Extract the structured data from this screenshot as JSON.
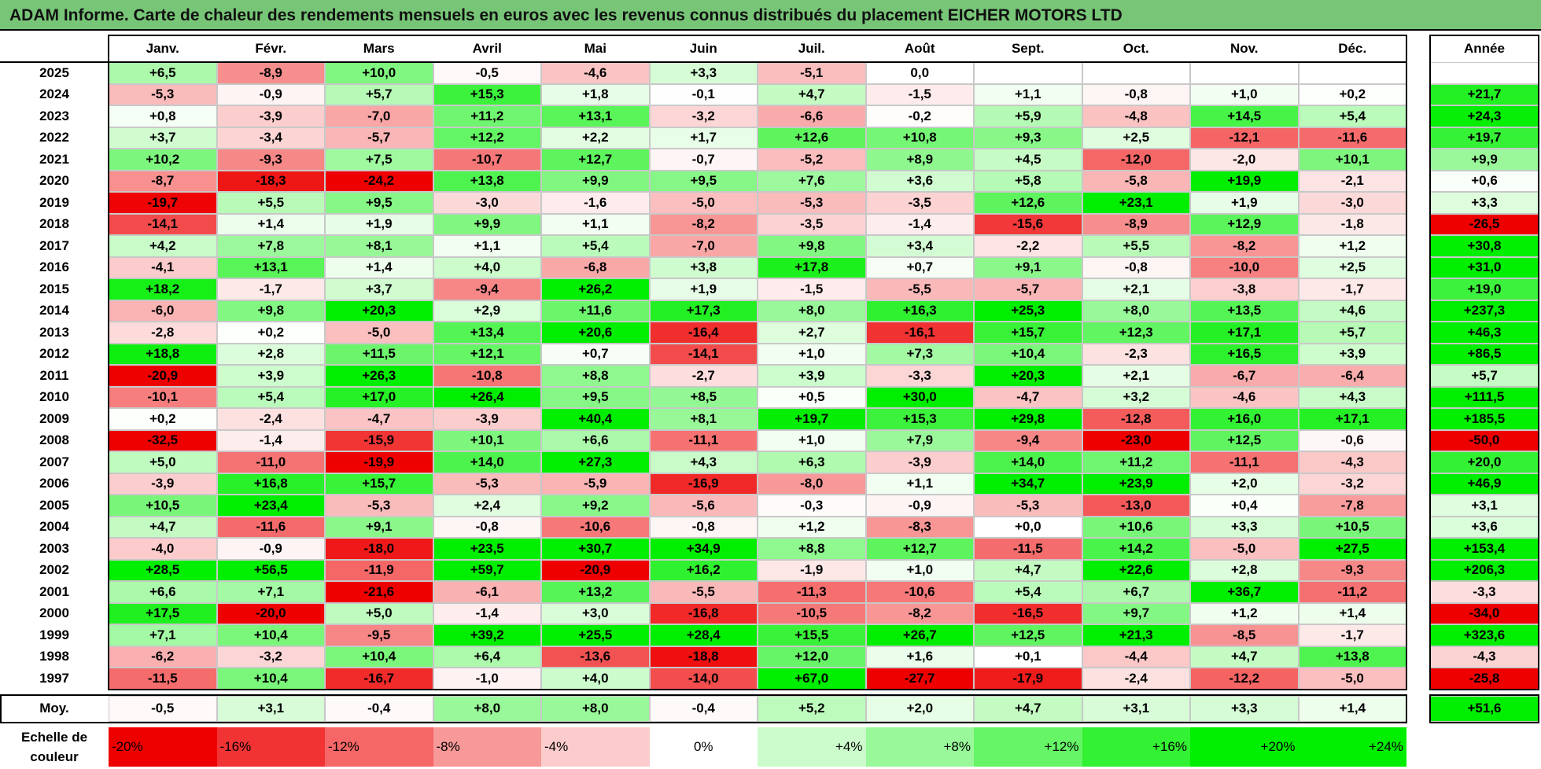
{
  "title": "ADAM Informe. Carte de chaleur des rendements mensuels en euros avec les revenus connus distribués du placement EICHER MOTORS LTD",
  "colors": {
    "title_bg": "#77c677",
    "positive": "#00ee00",
    "negative": "#ee0000",
    "neutral": "#ffffff"
  },
  "chart_data": {
    "type": "heatmap",
    "title": "ADAM Informe. Carte de chaleur des rendements mensuels en euros avec les revenus connus distribués du placement EICHER MOTORS LTD",
    "columns": [
      "Janv.",
      "Févr.",
      "Mars",
      "Avril",
      "Mai",
      "Juin",
      "Juil.",
      "Août",
      "Sept.",
      "Oct.",
      "Nov.",
      "Déc."
    ],
    "year_header": "Année",
    "rows": [
      {
        "year": "2025",
        "months": [
          "+6,5",
          "-8,9",
          "+10,0",
          "-0,5",
          "-4,6",
          "+3,3",
          "-5,1",
          "0,0",
          "",
          "",
          "",
          ""
        ],
        "annual": ""
      },
      {
        "year": "2024",
        "months": [
          "-5,3",
          "-0,9",
          "+5,7",
          "+15,3",
          "+1,8",
          "-0,1",
          "+4,7",
          "-1,5",
          "+1,1",
          "-0,8",
          "+1,0",
          "+0,2"
        ],
        "annual": "+21,7"
      },
      {
        "year": "2023",
        "months": [
          "+0,8",
          "-3,9",
          "-7,0",
          "+11,2",
          "+13,1",
          "-3,2",
          "-6,6",
          "-0,2",
          "+5,9",
          "-4,8",
          "+14,5",
          "+5,4"
        ],
        "annual": "+24,3"
      },
      {
        "year": "2022",
        "months": [
          "+3,7",
          "-3,4",
          "-5,7",
          "+12,2",
          "+2,2",
          "+1,7",
          "+12,6",
          "+10,8",
          "+9,3",
          "+2,5",
          "-12,1",
          "-11,6"
        ],
        "annual": "+19,7"
      },
      {
        "year": "2021",
        "months": [
          "+10,2",
          "-9,3",
          "+7,5",
          "-10,7",
          "+12,7",
          "-0,7",
          "-5,2",
          "+8,9",
          "+4,5",
          "-12,0",
          "-2,0",
          "+10,1"
        ],
        "annual": "+9,9"
      },
      {
        "year": "2020",
        "months": [
          "-8,7",
          "-18,3",
          "-24,2",
          "+13,8",
          "+9,9",
          "+9,5",
          "+7,6",
          "+3,6",
          "+5,8",
          "-5,8",
          "+19,9",
          "-2,1"
        ],
        "annual": "+0,6"
      },
      {
        "year": "2019",
        "months": [
          "-19,7",
          "+5,5",
          "+9,5",
          "-3,0",
          "-1,6",
          "-5,0",
          "-5,3",
          "-3,5",
          "+12,6",
          "+23,1",
          "+1,9",
          "-3,0"
        ],
        "annual": "+3,3"
      },
      {
        "year": "2018",
        "months": [
          "-14,1",
          "+1,4",
          "+1,9",
          "+9,9",
          "+1,1",
          "-8,2",
          "-3,5",
          "-1,4",
          "-15,6",
          "-8,9",
          "+12,9",
          "-1,8"
        ],
        "annual": "-26,5"
      },
      {
        "year": "2017",
        "months": [
          "+4,2",
          "+7,8",
          "+8,1",
          "+1,1",
          "+5,4",
          "-7,0",
          "+9,8",
          "+3,4",
          "-2,2",
          "+5,5",
          "-8,2",
          "+1,2"
        ],
        "annual": "+30,8"
      },
      {
        "year": "2016",
        "months": [
          "-4,1",
          "+13,1",
          "+1,4",
          "+4,0",
          "-6,8",
          "+3,8",
          "+17,8",
          "+0,7",
          "+9,1",
          "-0,8",
          "-10,0",
          "+2,5"
        ],
        "annual": "+31,0"
      },
      {
        "year": "2015",
        "months": [
          "+18,2",
          "-1,7",
          "+3,7",
          "-9,4",
          "+26,2",
          "+1,9",
          "-1,5",
          "-5,5",
          "-5,7",
          "+2,1",
          "-3,8",
          "-1,7"
        ],
        "annual": "+19,0"
      },
      {
        "year": "2014",
        "months": [
          "-6,0",
          "+9,8",
          "+20,3",
          "+2,9",
          "+11,6",
          "+17,3",
          "+8,0",
          "+16,3",
          "+25,3",
          "+8,0",
          "+13,5",
          "+4,6"
        ],
        "annual": "+237,3"
      },
      {
        "year": "2013",
        "months": [
          "-2,8",
          "+0,2",
          "-5,0",
          "+13,4",
          "+20,6",
          "-16,4",
          "+2,7",
          "-16,1",
          "+15,7",
          "+12,3",
          "+17,1",
          "+5,7"
        ],
        "annual": "+46,3"
      },
      {
        "year": "2012",
        "months": [
          "+18,8",
          "+2,8",
          "+11,5",
          "+12,1",
          "+0,7",
          "-14,1",
          "+1,0",
          "+7,3",
          "+10,4",
          "-2,3",
          "+16,5",
          "+3,9"
        ],
        "annual": "+86,5"
      },
      {
        "year": "2011",
        "months": [
          "-20,9",
          "+3,9",
          "+26,3",
          "-10,8",
          "+8,8",
          "-2,7",
          "+3,9",
          "-3,3",
          "+20,3",
          "+2,1",
          "-6,7",
          "-6,4"
        ],
        "annual": "+5,7"
      },
      {
        "year": "2010",
        "months": [
          "-10,1",
          "+5,4",
          "+17,0",
          "+26,4",
          "+9,5",
          "+8,5",
          "+0,5",
          "+30,0",
          "-4,7",
          "+3,2",
          "-4,6",
          "+4,3"
        ],
        "annual": "+111,5"
      },
      {
        "year": "2009",
        "months": [
          "+0,2",
          "-2,4",
          "-4,7",
          "-3,9",
          "+40,4",
          "+8,1",
          "+19,7",
          "+15,3",
          "+29,8",
          "-12,8",
          "+16,0",
          "+17,1"
        ],
        "annual": "+185,5"
      },
      {
        "year": "2008",
        "months": [
          "-32,5",
          "-1,4",
          "-15,9",
          "+10,1",
          "+6,6",
          "-11,1",
          "+1,0",
          "+7,9",
          "-9,4",
          "-23,0",
          "+12,5",
          "-0,6"
        ],
        "annual": "-50,0"
      },
      {
        "year": "2007",
        "months": [
          "+5,0",
          "-11,0",
          "-19,9",
          "+14,0",
          "+27,3",
          "+4,3",
          "+6,3",
          "-3,9",
          "+14,0",
          "+11,2",
          "-11,1",
          "-4,3"
        ],
        "annual": "+20,0"
      },
      {
        "year": "2006",
        "months": [
          "-3,9",
          "+16,8",
          "+15,7",
          "-5,3",
          "-5,9",
          "-16,9",
          "-8,0",
          "+1,1",
          "+34,7",
          "+23,9",
          "+2,0",
          "-3,2"
        ],
        "annual": "+46,9"
      },
      {
        "year": "2005",
        "months": [
          "+10,5",
          "+23,4",
          "-5,3",
          "+2,4",
          "+9,2",
          "-5,6",
          "-0,3",
          "-0,9",
          "-5,3",
          "-13,0",
          "+0,4",
          "-7,8"
        ],
        "annual": "+3,1"
      },
      {
        "year": "2004",
        "months": [
          "+4,7",
          "-11,6",
          "+9,1",
          "-0,8",
          "-10,6",
          "-0,8",
          "+1,2",
          "-8,3",
          "+0,0",
          "+10,6",
          "+3,3",
          "+10,5"
        ],
        "annual": "+3,6"
      },
      {
        "year": "2003",
        "months": [
          "-4,0",
          "-0,9",
          "-18,0",
          "+23,5",
          "+30,7",
          "+34,9",
          "+8,8",
          "+12,7",
          "-11,5",
          "+14,2",
          "-5,0",
          "+27,5"
        ],
        "annual": "+153,4"
      },
      {
        "year": "2002",
        "months": [
          "+28,5",
          "+56,5",
          "-11,9",
          "+59,7",
          "-20,9",
          "+16,2",
          "-1,9",
          "+1,0",
          "+4,7",
          "+22,6",
          "+2,8",
          "-9,3"
        ],
        "annual": "+206,3"
      },
      {
        "year": "2001",
        "months": [
          "+6,6",
          "+7,1",
          "-21,6",
          "-6,1",
          "+13,2",
          "-5,5",
          "-11,3",
          "-10,6",
          "+5,4",
          "+6,7",
          "+36,7",
          "-11,2"
        ],
        "annual": "-3,3"
      },
      {
        "year": "2000",
        "months": [
          "+17,5",
          "-20,0",
          "+5,0",
          "-1,4",
          "+3,0",
          "-16,8",
          "-10,5",
          "-8,2",
          "-16,5",
          "+9,7",
          "+1,2",
          "+1,4"
        ],
        "annual": "-34,0"
      },
      {
        "year": "1999",
        "months": [
          "+7,1",
          "+10,4",
          "-9,5",
          "+39,2",
          "+25,5",
          "+28,4",
          "+15,5",
          "+26,7",
          "+12,5",
          "+21,3",
          "-8,5",
          "-1,7"
        ],
        "annual": "+323,6"
      },
      {
        "year": "1998",
        "months": [
          "-6,2",
          "-3,2",
          "+10,4",
          "+6,4",
          "-13,6",
          "-18,8",
          "+12,0",
          "+1,6",
          "+0,1",
          "-4,4",
          "+4,7",
          "+13,8"
        ],
        "annual": "-4,3"
      },
      {
        "year": "1997",
        "months": [
          "-11,5",
          "+10,4",
          "-16,7",
          "-1,0",
          "+4,0",
          "-14,0",
          "+67,0",
          "-27,7",
          "-17,9",
          "-2,4",
          "-12,2",
          "-5,0"
        ],
        "annual": "-25,8"
      }
    ],
    "average": {
      "label": "Moy.",
      "months": [
        "-0,5",
        "+3,1",
        "-0,4",
        "+8,0",
        "+8,0",
        "-0,4",
        "+5,2",
        "+2,0",
        "+4,7",
        "+3,1",
        "+3,3",
        "+1,4"
      ],
      "annual": "+51,6"
    },
    "scale": {
      "label": "Echelle de couleur",
      "steps": [
        "-20%",
        "-16%",
        "-12%",
        "-8%",
        "-4%",
        "0%",
        "+4%",
        "+8%",
        "+12%",
        "+16%",
        "+20%",
        "+24%"
      ]
    }
  }
}
